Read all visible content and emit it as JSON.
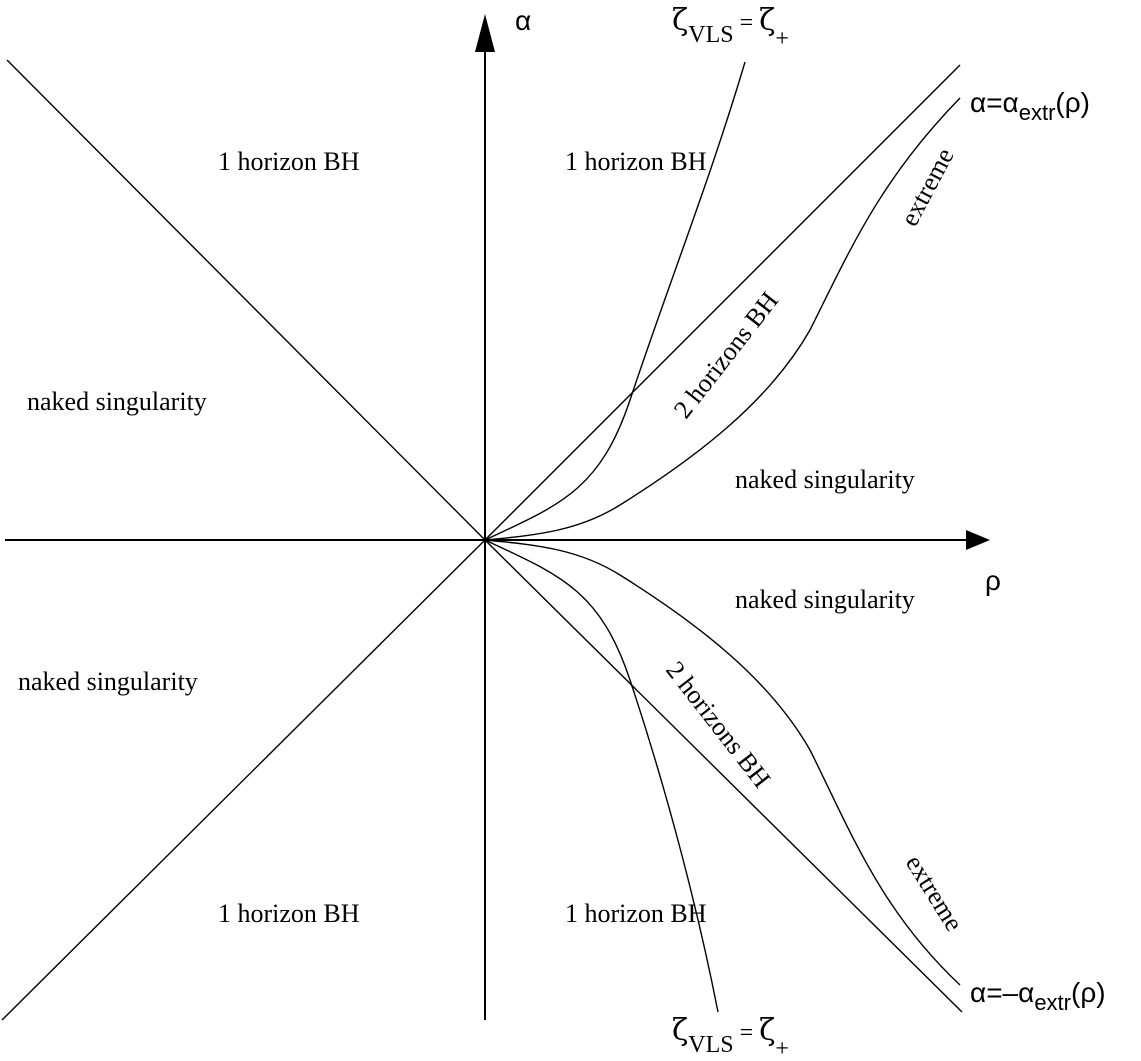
{
  "axes": {
    "vertical_label": "α",
    "horizontal_label": "ρ"
  },
  "regions": {
    "upper_left_bh": "1 horizon BH",
    "upper_right_bh": "1 horizon BH",
    "lower_left_bh": "1 horizon BH",
    "lower_right_bh": "1 horizon BH",
    "left_upper_naked": "naked singularity",
    "left_lower_naked": "naked singularity",
    "right_upper_naked": "naked singularity",
    "right_lower_naked": "naked singularity",
    "upper_two_horizons": "2 horizons BH",
    "lower_two_horizons": "2 horizons BH",
    "upper_extreme": "extreme",
    "lower_extreme": "extreme"
  },
  "curve_labels": {
    "upper_extr": {
      "lhs": "α=α",
      "sub": "extr",
      "rhs": "(ρ)"
    },
    "lower_extr": {
      "lhs": "α=–α",
      "sub": "extr",
      "rhs": "(ρ)"
    },
    "upper_vls": {
      "zeta1": "ζ",
      "sub1": "VLS",
      "eq": " = ",
      "zeta2": "ζ",
      "sub2": "+"
    },
    "lower_vls": {
      "zeta1": "ζ",
      "sub1": "VLS",
      "eq": " = ",
      "zeta2": "ζ",
      "sub2": "+"
    }
  }
}
